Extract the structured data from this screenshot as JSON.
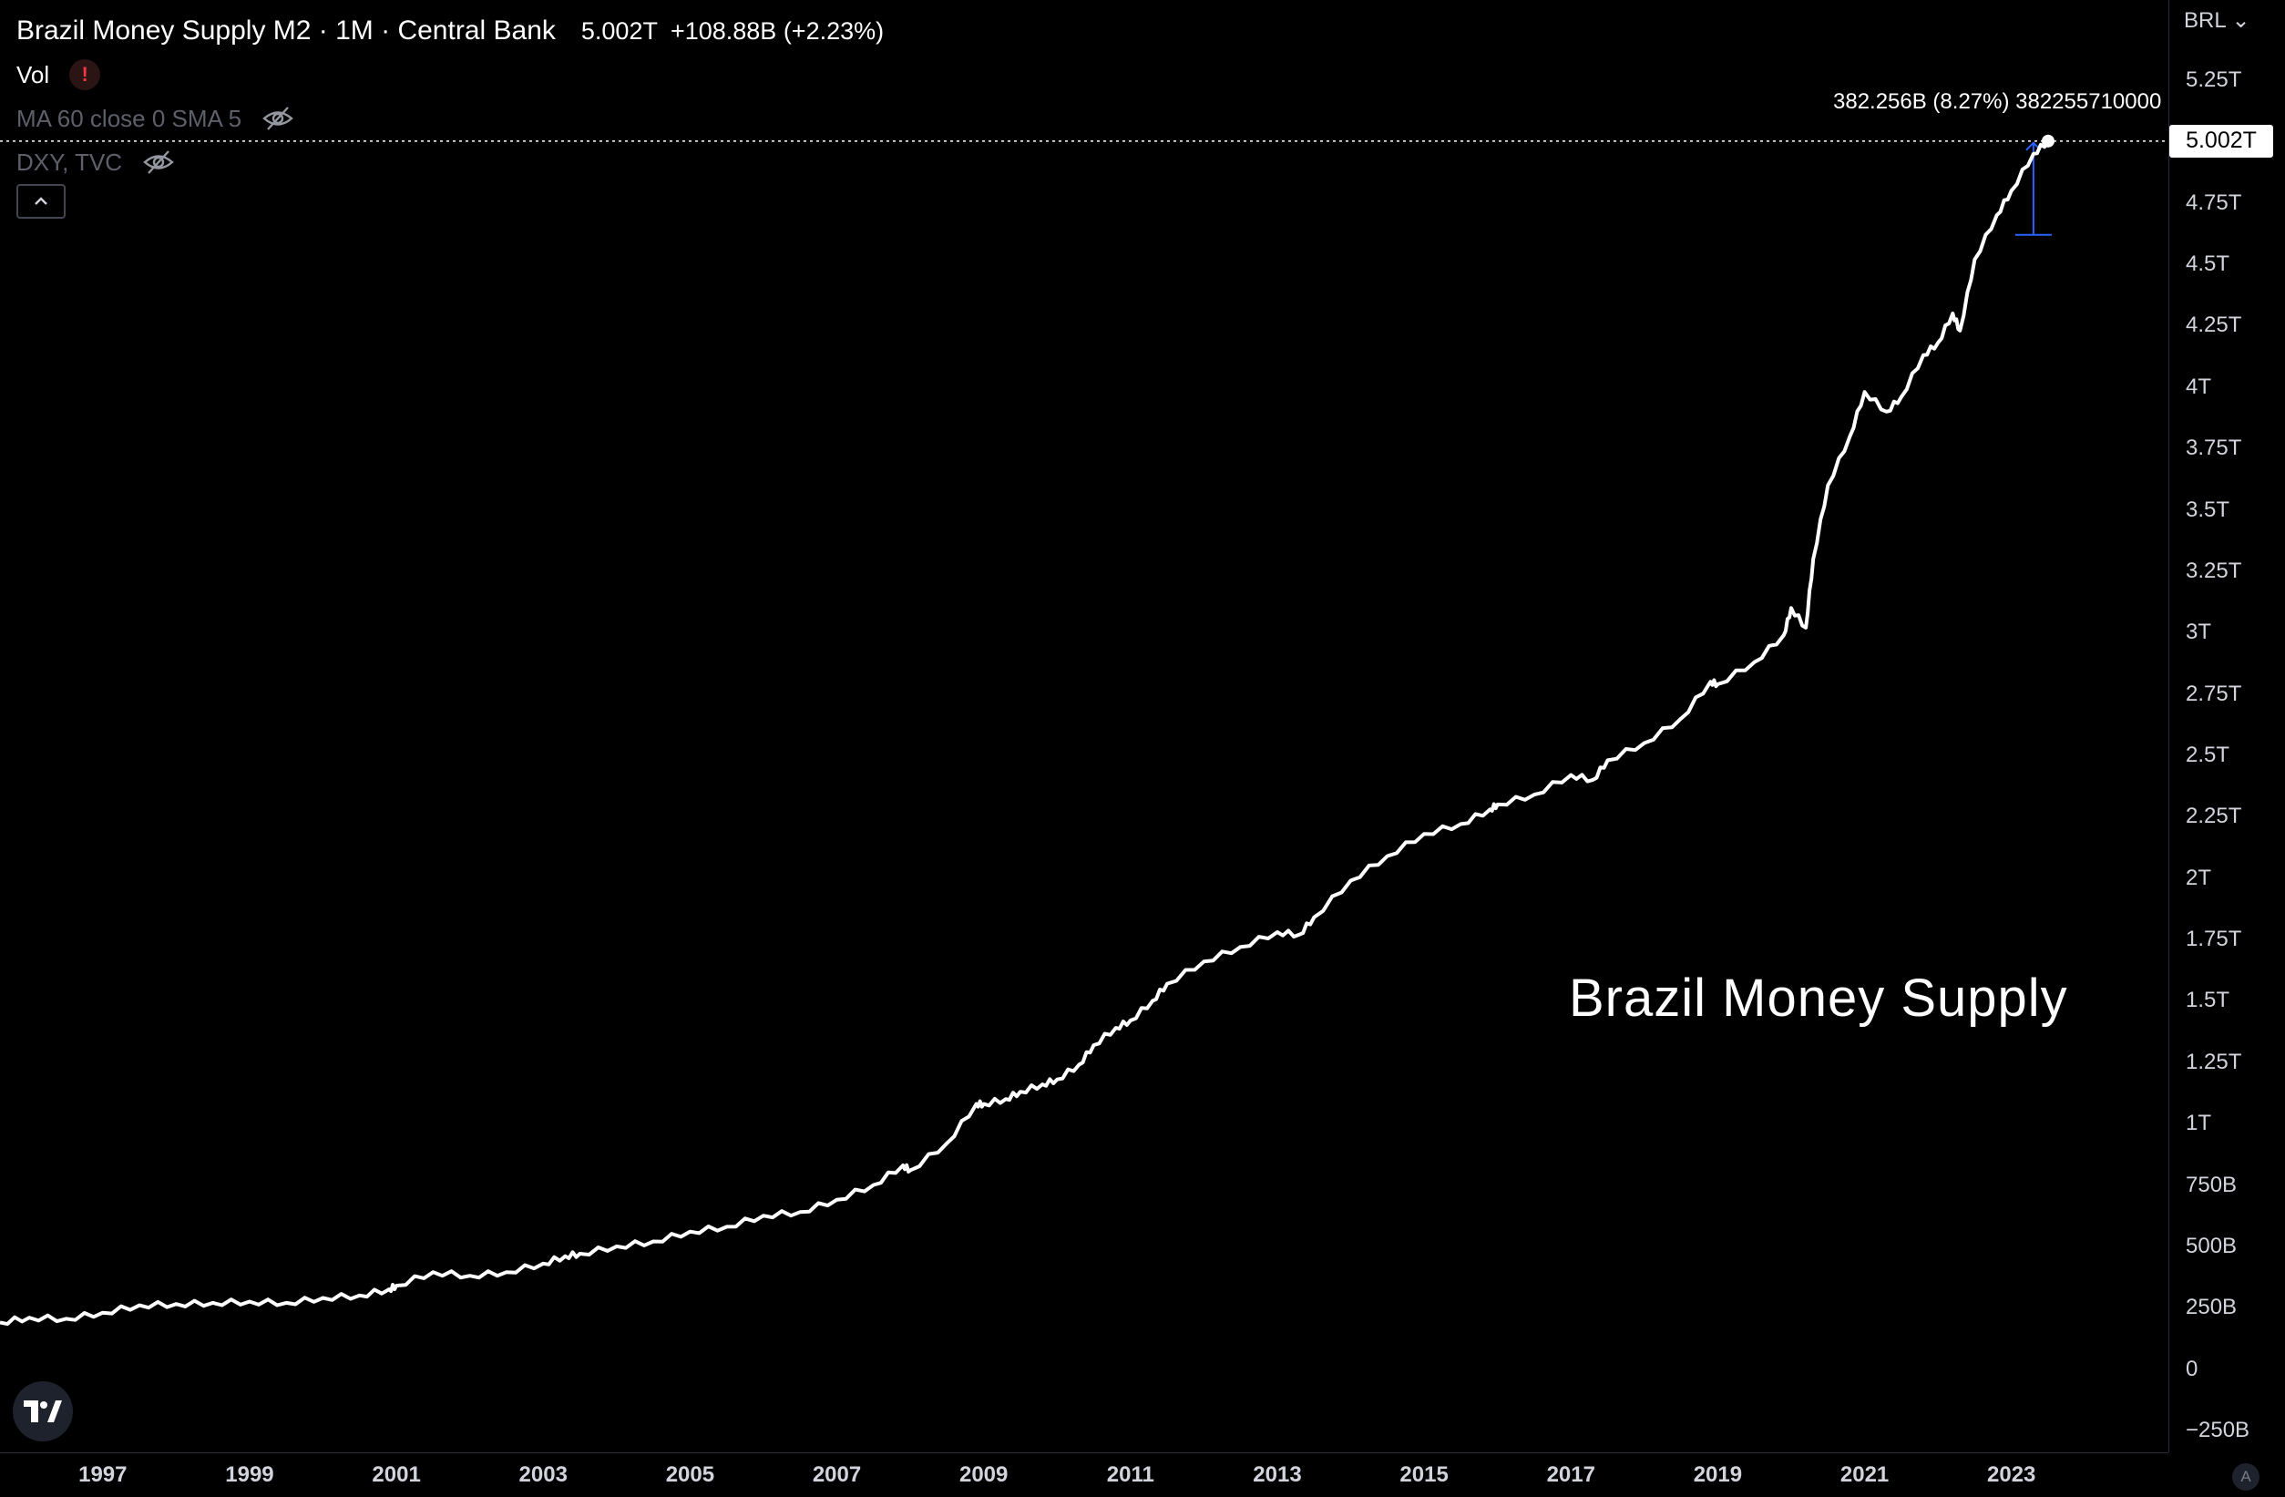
{
  "header": {
    "symbol_title": "Brazil Money Supply M2 · 1M · Central Bank",
    "last_value": "5.002T",
    "change": "+108.88B (+2.23%)"
  },
  "indicators": [
    {
      "label": "Vol",
      "warning_icon": "exclamation-icon"
    },
    {
      "label": "MA 60 close 0 SMA 5",
      "hidden_icon": "eye-off-icon"
    },
    {
      "label": "DXY, TVC",
      "hidden_icon": "eye-off-icon"
    }
  ],
  "price_axis": {
    "currency": "BRL",
    "last_price_label": "5.002T",
    "ticks": [
      "5.25T",
      "4.75T",
      "4.5T",
      "4.25T",
      "4T",
      "3.75T",
      "3.5T",
      "3.25T",
      "3T",
      "2.75T",
      "2.5T",
      "2.25T",
      "2T",
      "1.75T",
      "1.5T",
      "1.25T",
      "1T",
      "750B",
      "500B",
      "250B",
      "0",
      "−250B"
    ]
  },
  "time_axis": {
    "ticks": [
      "1997",
      "1999",
      "2001",
      "2003",
      "2005",
      "2007",
      "2009",
      "2011",
      "2013",
      "2015",
      "2017",
      "2019",
      "2021",
      "2023"
    ]
  },
  "annotation_text": "Brazil Money Supply",
  "measure_label": "382.256B (8.27%) 382255710000",
  "corner_badge": "A",
  "colors": {
    "background": "#000000",
    "line": "#ffffff",
    "measure": "#2962ff",
    "axis_text": "#d1d4dc"
  },
  "chart_data": {
    "type": "line",
    "title": "Brazil Money Supply M2 · 1M · Central Bank",
    "xlabel": "",
    "ylabel": "",
    "unit": "BRL",
    "y_range": [
      -250000000000,
      5400000000000
    ],
    "x_range": [
      1995.6,
      2024.8
    ],
    "grid": false,
    "series": [
      {
        "x": [
          1995.6,
          1996.0,
          1996.5,
          1997.0,
          1997.5,
          1998.0,
          1998.5,
          1999.0,
          1999.5,
          2000.0,
          2000.5,
          2000.9,
          2001.0,
          2001.5,
          2002.0,
          2002.5,
          2003.0,
          2003.3,
          2003.5,
          2004.0,
          2004.5,
          2005.0,
          2005.5,
          2006.0,
          2006.5,
          2007.0,
          2007.5,
          2007.9,
          2008.0,
          2008.5,
          2008.9,
          2009.0,
          2009.3,
          2009.5,
          2009.8,
          2010.0,
          2010.3,
          2010.5,
          2010.8,
          2011.0,
          2011.3,
          2011.5,
          2012.0,
          2012.5,
          2013.0,
          2013.3,
          2013.5,
          2014.0,
          2014.5,
          2015.0,
          2015.5,
          2015.9,
          2016.0,
          2016.5,
          2017.0,
          2017.3,
          2017.5,
          2018.0,
          2018.5,
          2018.9,
          2019.0,
          2019.5,
          2019.9,
          2020.0,
          2020.2,
          2020.3,
          2020.5,
          2020.8,
          2021.0,
          2021.3,
          2021.5,
          2021.8,
          2022.0,
          2022.2,
          2022.3,
          2022.5,
          2022.8,
          2023.0,
          2023.3,
          2023.5
        ],
        "y": [
          190000000000.0,
          210000000000.0,
          205000000000.0,
          230000000000.0,
          260000000000.0,
          265000000000.0,
          270000000000.0,
          275000000000.0,
          270000000000.0,
          290000000000.0,
          300000000000.0,
          325000000000.0,
          340000000000.0,
          395000000000.0,
          380000000000.0,
          395000000000.0,
          430000000000.0,
          460000000000.0,
          470000000000.0,
          500000000000.0,
          520000000000.0,
          560000000000.0,
          580000000000.0,
          625000000000.0,
          640000000000.0,
          690000000000.0,
          750000000000.0,
          830000000000.0,
          810000000000.0,
          920000000000.0,
          1080000000000.0,
          1080000000000.0,
          1100000000000.0,
          1130000000000.0,
          1160000000000.0,
          1180000000000.0,
          1240000000000.0,
          1320000000000.0,
          1390000000000.0,
          1420000000000.0,
          1500000000000.0,
          1570000000000.0,
          1660000000000.0,
          1720000000000.0,
          1780000000000.0,
          1770000000000.0,
          1840000000000.0,
          1990000000000.0,
          2090000000000.0,
          2180000000000.0,
          2220000000000.0,
          2280000000000.0,
          2300000000000.0,
          2340000000000.0,
          2420000000000.0,
          2400000000000.0,
          2480000000000.0,
          2550000000000.0,
          2650000000000.0,
          2800000000000.0,
          2790000000000.0,
          2880000000000.0,
          2990000000000.0,
          3100000000000.0,
          3020000000000.0,
          3300000000000.0,
          3600000000000.0,
          3800000000000.0,
          3980000000000.0,
          3900000000000.0,
          3960000000000.0,
          4130000000000.0,
          4180000000000.0,
          4300000000000.0,
          4230000000000.0,
          4520000000000.0,
          4700000000000.0,
          4800000000000.0,
          4950000000000.0,
          5002000000000.0
        ]
      }
    ],
    "last_value": 5002000000000,
    "change": 108880000000,
    "change_percent": 2.23,
    "measure": {
      "from_y": 4620000000000,
      "to_y": 5002000000000,
      "delta": 382256000000,
      "percent": 8.27
    }
  }
}
